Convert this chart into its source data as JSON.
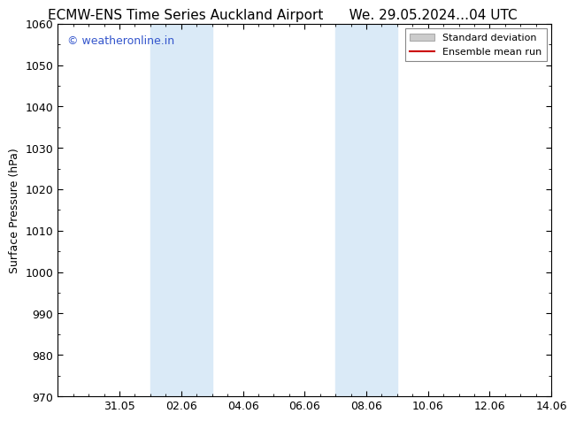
{
  "title_left": "ECMW-ENS Time Series Auckland Airport",
  "title_right": "We. 29.05.2024…04 UTC",
  "ylabel": "Surface Pressure (hPa)",
  "ylim": [
    970,
    1060
  ],
  "yticks": [
    970,
    980,
    990,
    1000,
    1010,
    1020,
    1030,
    1040,
    1050,
    1060
  ],
  "xlim_start": 0,
  "xlim_end": 16,
  "xtick_labels": [
    "31.05",
    "02.06",
    "04.06",
    "06.06",
    "08.06",
    "10.06",
    "12.06",
    "14.06"
  ],
  "xtick_positions": [
    2,
    4,
    6,
    8,
    10,
    12,
    14,
    16
  ],
  "shaded_regions": [
    {
      "x_start": 3,
      "x_end": 5
    },
    {
      "x_start": 9,
      "x_end": 11
    }
  ],
  "shade_color": "#daeaf7",
  "watermark_text": "© weatheronline.in",
  "watermark_color": "#3355cc",
  "legend_std_label": "Standard deviation",
  "legend_ens_label": "Ensemble mean run",
  "legend_std_color": "#cccccc",
  "legend_ens_color": "#cc0000",
  "background_color": "#ffffff",
  "title_fontsize": 11,
  "axis_fontsize": 9,
  "tick_fontsize": 9
}
